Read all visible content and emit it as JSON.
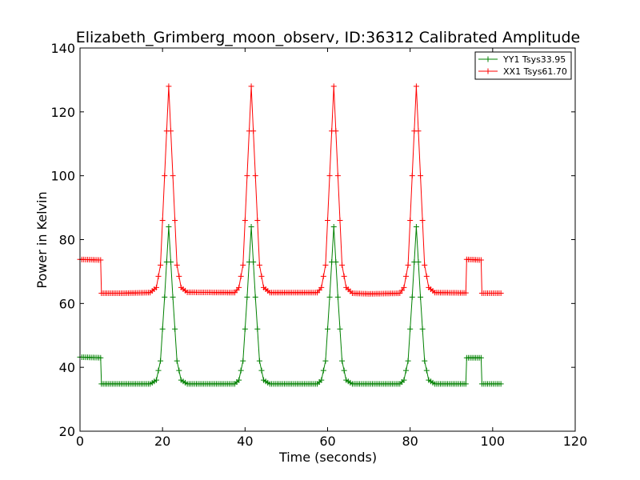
{
  "chart_data": {
    "type": "line",
    "title": "Elizabeth_Grimberg_moon_observ, ID:36312 Calibrated Amplitude",
    "xlabel": "Time (seconds)",
    "ylabel": "Power in Kelvin",
    "xlim": [
      0,
      120
    ],
    "ylim": [
      20,
      140
    ],
    "xticks": [
      0,
      20,
      40,
      60,
      80,
      100,
      120
    ],
    "yticks": [
      20,
      40,
      60,
      80,
      100,
      120,
      140
    ],
    "xtick_labels": [
      "0",
      "20",
      "40",
      "60",
      "80",
      "100",
      "120"
    ],
    "ytick_labels": [
      "20",
      "40",
      "60",
      "80",
      "100",
      "120",
      "140"
    ],
    "grid": false,
    "legend_position": "top-right",
    "marker": "plus",
    "series": [
      {
        "name": "YY1 Tsys33.95",
        "color": "#008000",
        "points": [
          [
            0,
            43.2
          ],
          [
            5,
            43
          ],
          [
            5.2,
            34.8
          ],
          [
            10,
            34.8
          ],
          [
            17,
            34.8
          ],
          [
            18.5,
            36
          ],
          [
            19.5,
            42
          ],
          [
            20.5,
            62
          ],
          [
            21.5,
            84
          ],
          [
            22.5,
            62
          ],
          [
            23.5,
            42
          ],
          [
            24.5,
            36
          ],
          [
            26,
            34.8
          ],
          [
            37.5,
            34.8
          ],
          [
            38.5,
            36
          ],
          [
            39.5,
            42
          ],
          [
            40.5,
            62
          ],
          [
            41.5,
            84
          ],
          [
            42.5,
            62
          ],
          [
            43.5,
            42
          ],
          [
            44.5,
            36
          ],
          [
            46,
            34.8
          ],
          [
            57.5,
            34.8
          ],
          [
            58.5,
            36
          ],
          [
            59.5,
            42
          ],
          [
            60.5,
            62
          ],
          [
            61.5,
            84
          ],
          [
            62.5,
            62
          ],
          [
            63.5,
            42
          ],
          [
            64.5,
            36
          ],
          [
            66,
            34.8
          ],
          [
            77.5,
            34.8
          ],
          [
            78.5,
            36
          ],
          [
            79.5,
            42
          ],
          [
            80.5,
            62
          ],
          [
            81.5,
            84
          ],
          [
            82.5,
            62
          ],
          [
            83.5,
            42
          ],
          [
            84.5,
            36
          ],
          [
            86,
            34.8
          ],
          [
            93.5,
            34.8
          ],
          [
            93.7,
            43
          ],
          [
            97.2,
            43
          ],
          [
            97.4,
            34.8
          ],
          [
            102,
            34.8
          ]
        ]
      },
      {
        "name": "XX1 Tsys61.70",
        "color": "#ff0000",
        "points": [
          [
            0,
            73.8
          ],
          [
            5,
            73.6
          ],
          [
            5.2,
            63.2
          ],
          [
            10,
            63.2
          ],
          [
            17,
            63.4
          ],
          [
            18.5,
            65
          ],
          [
            19.5,
            72
          ],
          [
            20.5,
            100
          ],
          [
            21.5,
            128
          ],
          [
            22.5,
            100
          ],
          [
            23.5,
            72
          ],
          [
            24.5,
            65
          ],
          [
            26,
            63.5
          ],
          [
            37.5,
            63.4
          ],
          [
            38.5,
            65
          ],
          [
            39.5,
            72
          ],
          [
            40.5,
            100
          ],
          [
            41.5,
            128
          ],
          [
            42.5,
            100
          ],
          [
            43.5,
            72
          ],
          [
            44.5,
            65
          ],
          [
            46,
            63.4
          ],
          [
            57.5,
            63.4
          ],
          [
            58.5,
            65
          ],
          [
            59.5,
            72
          ],
          [
            60.5,
            100
          ],
          [
            61.5,
            128
          ],
          [
            62.5,
            100
          ],
          [
            63.5,
            72
          ],
          [
            64.5,
            65
          ],
          [
            66,
            63.2
          ],
          [
            70,
            63
          ],
          [
            77.5,
            63.2
          ],
          [
            78.5,
            65
          ],
          [
            79.5,
            72
          ],
          [
            80.5,
            100
          ],
          [
            81.5,
            128
          ],
          [
            82.5,
            100
          ],
          [
            83.5,
            72
          ],
          [
            84.5,
            65
          ],
          [
            86,
            63.4
          ],
          [
            93.5,
            63.3
          ],
          [
            93.7,
            73.8
          ],
          [
            97.2,
            73.6
          ],
          [
            97.4,
            63.2
          ],
          [
            102,
            63.2
          ]
        ]
      }
    ]
  }
}
